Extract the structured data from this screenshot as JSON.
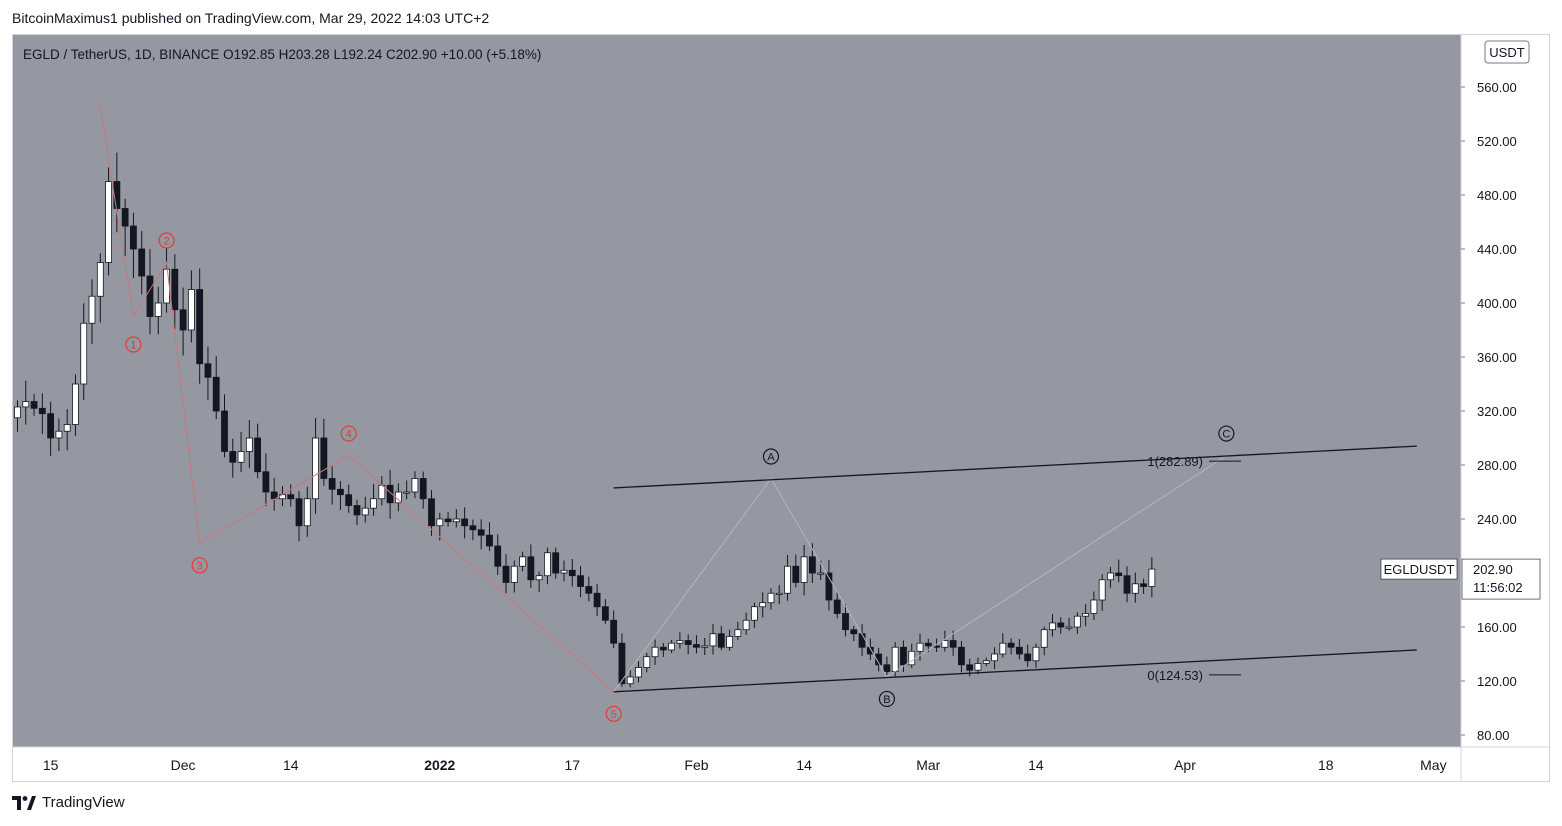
{
  "header": {
    "published_line": "BitcoinMaximus1 published on TradingView.com, Mar 29, 2022 14:03 UTC+2"
  },
  "footer": {
    "brand": "TradingView"
  },
  "legend": {
    "symbol_line": "EGLD / TetherUS, 1D, BINANCE",
    "o_label": "O",
    "o_value": "192.85",
    "h_label": "H",
    "h_value": "203.28",
    "l_label": "L",
    "l_value": "192.24",
    "c_label": "C",
    "c_value": "202.90",
    "change": "+10.00 (+5.18%)"
  },
  "price_scale": {
    "currency": "USDT",
    "last_label": "EGLDUSDT",
    "last_price": "202.90",
    "countdown": "11:56:02"
  },
  "colors": {
    "pane_bg": "#9598a1",
    "up_candle": "#ffffff",
    "down_candle": "#131722",
    "wave_red": "#e53935",
    "wave_line": "#c9787a",
    "trend_line": "#131722",
    "abc_line": "#b4b6bd"
  },
  "chart_data": {
    "type": "candlestick",
    "title": "EGLD / TetherUS, 1D, BINANCE",
    "ylabel": "USDT",
    "ylim": [
      70,
      585
    ],
    "y_ticks": [
      "560.00",
      "520.00",
      "480.00",
      "440.00",
      "400.00",
      "360.00",
      "320.00",
      "280.00",
      "240.00",
      "160.00",
      "120.00",
      "80.00"
    ],
    "x_tick_labels": [
      {
        "label": "15",
        "date": "2021-11-15"
      },
      {
        "label": "Dec",
        "date": "2021-12-01"
      },
      {
        "label": "14",
        "date": "2021-12-14"
      },
      {
        "label": "2022",
        "date": "2022-01-01"
      },
      {
        "label": "17",
        "date": "2022-01-17"
      },
      {
        "label": "Feb",
        "date": "2022-02-01"
      },
      {
        "label": "14",
        "date": "2022-02-14"
      },
      {
        "label": "Mar",
        "date": "2022-03-01"
      },
      {
        "label": "14",
        "date": "2022-03-14"
      },
      {
        "label": "Apr",
        "date": "2022-04-01"
      },
      {
        "label": "18",
        "date": "2022-04-18"
      },
      {
        "label": "May",
        "date": "2022-05-01"
      }
    ],
    "closes": [
      323,
      327,
      322,
      318,
      300,
      305,
      310,
      340,
      385,
      405,
      430,
      490,
      470,
      457,
      440,
      420,
      390,
      400,
      425,
      395,
      380,
      410,
      355,
      345,
      320,
      290,
      282,
      290,
      300,
      275,
      260,
      255,
      258,
      255,
      235,
      255,
      300,
      270,
      262,
      258,
      250,
      243,
      248,
      255,
      265,
      252,
      260,
      260,
      270,
      255,
      235,
      240,
      238,
      240,
      235,
      232,
      228,
      220,
      205,
      193,
      205,
      212,
      195,
      198,
      215,
      200,
      202,
      198,
      190,
      185,
      175,
      165,
      148,
      118,
      123,
      130,
      138,
      145,
      143,
      148,
      150,
      147,
      145,
      146,
      155,
      145,
      153,
      158,
      165,
      175,
      178,
      185,
      185,
      205,
      193,
      212,
      200,
      200,
      180,
      170,
      158,
      155,
      145,
      140,
      132,
      127,
      145,
      132,
      142,
      148,
      146,
      145,
      150,
      145,
      132,
      128,
      133,
      135,
      140,
      148,
      145,
      140,
      135,
      145,
      158,
      163,
      160,
      160,
      168,
      170,
      180,
      195,
      200,
      198,
      185,
      192,
      190,
      202.9
    ],
    "opens_note": "open of each day equals previous close except first (315)",
    "fib_levels": [
      {
        "label": "1(282.89)",
        "value": 282.89
      },
      {
        "label": "0(124.53)",
        "value": 124.53
      }
    ],
    "wave_labels": [
      {
        "label": "1",
        "date": "2021-11-25",
        "value": 390,
        "style": "red"
      },
      {
        "label": "2",
        "date": "2021-11-29",
        "value": 430,
        "style": "red"
      },
      {
        "label": "3",
        "date": "2021-12-03",
        "value": 222,
        "style": "red"
      },
      {
        "label": "4",
        "date": "2021-12-21",
        "value": 287,
        "style": "red"
      },
      {
        "label": "5",
        "date": "2022-01-22",
        "value": 112,
        "style": "red"
      },
      {
        "label": "A",
        "date": "2022-02-10",
        "value": 270,
        "style": "black"
      },
      {
        "label": "B",
        "date": "2022-02-24",
        "value": 123,
        "style": "black"
      },
      {
        "label": "C",
        "date": "2022-04-06",
        "value": 287,
        "style": "black"
      }
    ],
    "trend_lines": [
      {
        "from": {
          "date": "2022-01-22",
          "value": 263
        },
        "to": {
          "date": "2022-04-29",
          "value": 294
        }
      },
      {
        "from": {
          "date": "2022-01-22",
          "value": 112
        },
        "to": {
          "date": "2022-04-29",
          "value": 143
        }
      }
    ],
    "grid": false,
    "legend_position": "top-left"
  }
}
